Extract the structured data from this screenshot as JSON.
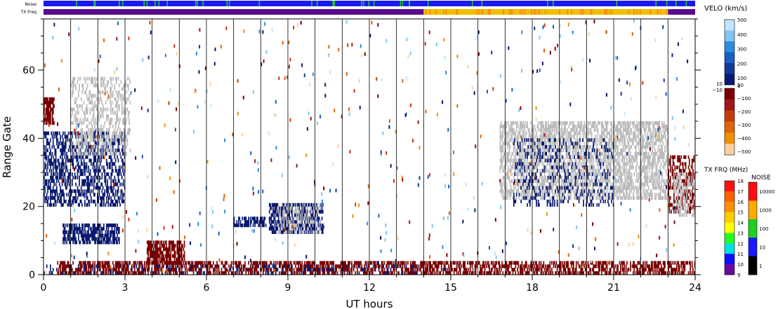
{
  "chart_data": {
    "type": "heatmap",
    "xlabel": "UT hours",
    "ylabel": "Range Gate",
    "xlim": [
      0,
      24
    ],
    "ylim": [
      0,
      75
    ],
    "x_ticks": [
      "0",
      "3",
      "6",
      "9",
      "12",
      "15",
      "18",
      "21",
      "24"
    ],
    "x_tick_values": [
      0,
      3,
      6,
      9,
      12,
      15,
      18,
      21,
      24
    ],
    "y_ticks": [
      "0",
      "20",
      "40",
      "60"
    ],
    "y_tick_values": [
      0,
      20,
      40,
      60
    ],
    "grid": "vertical lines every hour",
    "top_bars": {
      "noise_label": "Noise",
      "txfreq_label": "TX Freq",
      "noise_color": "#1a1af0",
      "noise_tick_color": "#22cc22",
      "txfreq_segments": [
        {
          "start": 0,
          "end": 14,
          "color": "#5a0a8a"
        },
        {
          "start": 14,
          "end": 23,
          "color": "#f0c000"
        },
        {
          "start": 23,
          "end": 24,
          "color": "#5a0a8a"
        }
      ]
    },
    "velocity_scale": {
      "title": "VELO (km/s)",
      "positive_ticks": [
        "500",
        "400",
        "300",
        "200",
        "100",
        "10"
      ],
      "zero_tick": "0",
      "neg_top_label": "−10",
      "negative_ticks": [
        "−100",
        "−200",
        "−300",
        "−400",
        "−500"
      ],
      "positive_colors": [
        "#bfe6ff",
        "#7fc4f5",
        "#2b8de0",
        "#1a5fc4",
        "#123a9a",
        "#0a1a70"
      ],
      "negative_colors": [
        "#7a0000",
        "#a01818",
        "#c83a0a",
        "#e0640a",
        "#f0900a",
        "#ffd0a0"
      ]
    },
    "txfreq_scale": {
      "title": "TX FRQ (MHz)",
      "ticks": [
        "18",
        "17",
        "16",
        "15",
        "14",
        "13",
        "12",
        "11",
        "10",
        "9"
      ],
      "colors": [
        "#ff1010",
        "#ff6000",
        "#ff9000",
        "#ffcc00",
        "#ffff00",
        "#20ff20",
        "#00e0e0",
        "#1010ff",
        "#6a0aa0"
      ]
    },
    "noise_scale": {
      "title": "NOISE",
      "ticks": [
        "10000",
        "1000",
        "100",
        "10",
        "1"
      ],
      "colors": [
        "#ff1010",
        "#ffaa00",
        "#20d020",
        "#1a1aff",
        "#000000"
      ]
    },
    "echo_regions": [
      {
        "name": "ground-scatter-band",
        "x": [
          0.5,
          24
        ],
        "y": [
          0,
          4
        ],
        "color": "#7a0000",
        "density": 0.55
      },
      {
        "name": "near-range-positive",
        "x": [
          0,
          14
        ],
        "y": [
          0,
          3
        ],
        "color": "#0a1a70",
        "density": 0.12
      },
      {
        "name": "early-morning-cluster",
        "x": [
          3.8,
          5.2
        ],
        "y": [
          3,
          10
        ],
        "color": "#7a0000",
        "density": 0.7
      },
      {
        "name": "far-range-0-1",
        "x": [
          0,
          0.4
        ],
        "y": [
          44,
          52
        ],
        "color": "#7a0000",
        "density": 0.8
      },
      {
        "name": "band-0-3-mixed",
        "x": [
          0,
          3
        ],
        "y": [
          20,
          42
        ],
        "color": "#0a1a70",
        "density": 0.45
      },
      {
        "name": "band-0-3-gray",
        "x": [
          1,
          3.2
        ],
        "y": [
          35,
          58
        ],
        "color": "#bcbcbc",
        "density": 0.35
      },
      {
        "name": "gate-12-band",
        "x": [
          0.7,
          2.8
        ],
        "y": [
          9,
          15
        ],
        "color": "#0a1a70",
        "density": 0.65
      },
      {
        "name": "gate-16-band",
        "x": [
          7,
          8.2
        ],
        "y": [
          14,
          17
        ],
        "color": "#0a1a70",
        "density": 0.6
      },
      {
        "name": "gate-19-band",
        "x": [
          8.3,
          10.3
        ],
        "y": [
          12,
          21
        ],
        "color": "#0a1a70",
        "density": 0.55
      },
      {
        "name": "gate-19-gray",
        "x": [
          8.6,
          10.2
        ],
        "y": [
          12,
          21
        ],
        "color": "#bcbcbc",
        "density": 0.3
      },
      {
        "name": "afternoon-gray",
        "x": [
          16.8,
          23
        ],
        "y": [
          22,
          45
        ],
        "color": "#bcbcbc",
        "density": 0.55
      },
      {
        "name": "afternoon-blue",
        "x": [
          17.3,
          21
        ],
        "y": [
          20,
          40
        ],
        "color": "#0a1a70",
        "density": 0.18
      },
      {
        "name": "late-red",
        "x": [
          23,
          24
        ],
        "y": [
          18,
          35
        ],
        "color": "#7a0000",
        "density": 0.45
      },
      {
        "name": "late-gray",
        "x": [
          23.2,
          24
        ],
        "y": [
          17,
          30
        ],
        "color": "#bcbcbc",
        "density": 0.45
      }
    ]
  }
}
